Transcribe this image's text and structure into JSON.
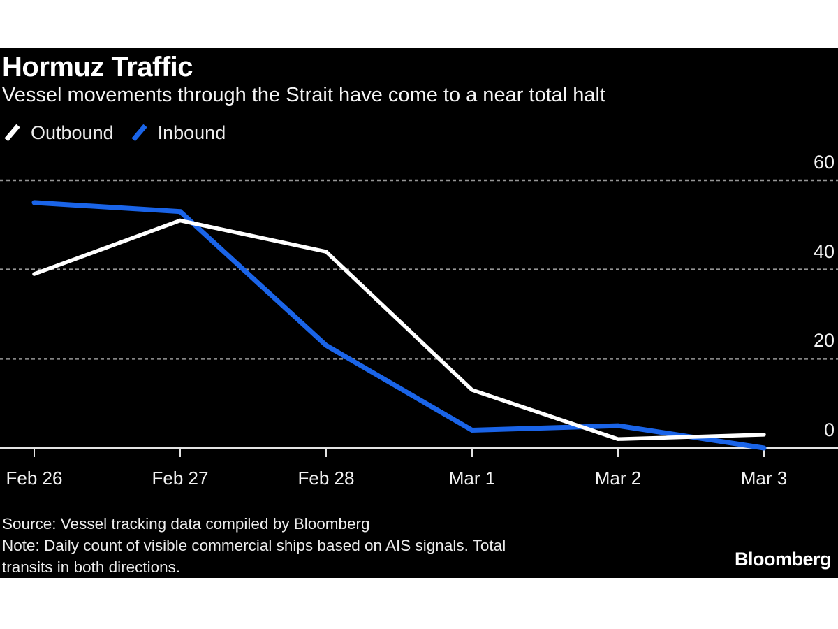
{
  "header": {
    "title": "Hormuz Traffic",
    "subtitle": "Vessel movements through the Strait have come to a near total halt"
  },
  "chart_data": {
    "type": "line",
    "categories": [
      "Feb 26",
      "Feb 27",
      "Feb 28",
      "Mar 1",
      "Mar 2",
      "Mar 3"
    ],
    "series": [
      {
        "name": "Outbound",
        "color": "#ffffff",
        "values": [
          39,
          51,
          44,
          13,
          2,
          3
        ]
      },
      {
        "name": "Inbound",
        "color": "#1a64e8",
        "values": [
          55,
          53,
          23,
          4,
          5,
          0
        ]
      }
    ],
    "title": "Hormuz Traffic",
    "subtitle": "Vessel movements through the Strait have come to a near total halt",
    "xlabel": "",
    "ylabel": "",
    "ylim": [
      0,
      60
    ],
    "yticks": [
      0,
      20,
      40,
      60
    ],
    "grid": "horizontal-dashed",
    "legend_position": "top-left",
    "y_axis_side": "right"
  },
  "footer": {
    "lines": [
      "Source: Vessel tracking data compiled by Bloomberg",
      "Note: Daily count of visible commercial ships based on AIS signals. Total",
      "transits in both directions."
    ],
    "brand": "Bloomberg"
  },
  "colors": {
    "page_background": "#ffffff",
    "background": "#000000",
    "grid": "#969696",
    "axis": "#e3e3e3",
    "label": "#f2f2f2",
    "accent_blue": "#1a64e8"
  }
}
